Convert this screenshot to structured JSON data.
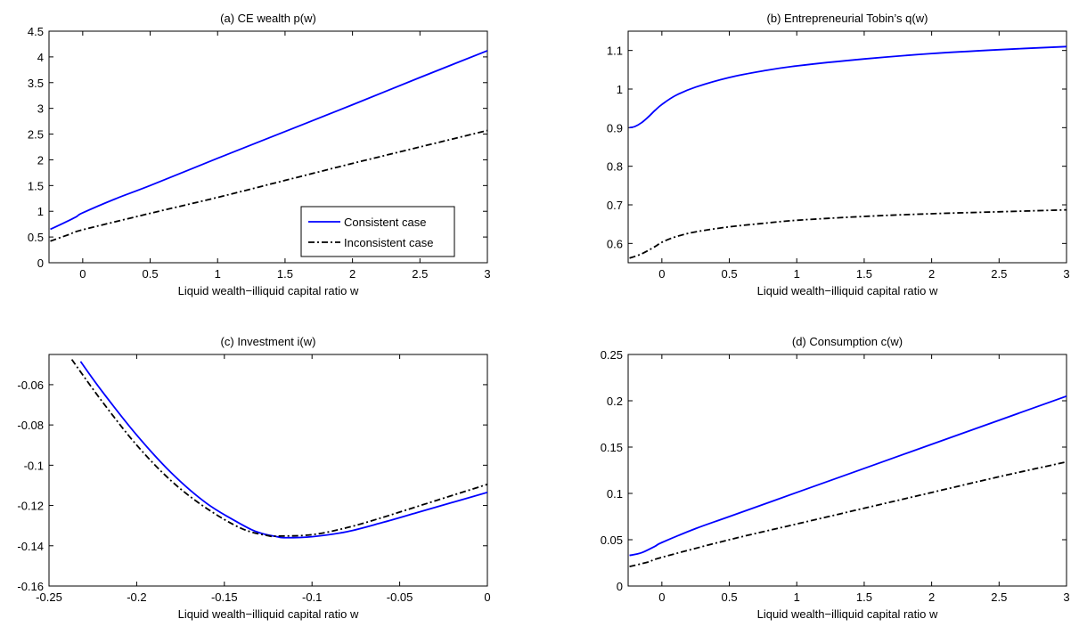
{
  "chart_data": [
    {
      "id": "a",
      "type": "line",
      "title": "(a) CE wealth p(w)",
      "xlabel": "Liquid wealth−illiquid capital ratio w",
      "ylabel": "",
      "xlim": [
        -0.25,
        3
      ],
      "ylim": [
        0,
        4.5
      ],
      "xticks": [
        0,
        0.5,
        1,
        1.5,
        2,
        2.5,
        3
      ],
      "xtick_labels": [
        "0",
        "0.5",
        "1",
        "1.5",
        "2",
        "2.5",
        "3"
      ],
      "yticks": [
        0,
        0.5,
        1,
        1.5,
        2,
        2.5,
        3,
        3.5,
        4,
        4.5
      ],
      "ytick_labels": [
        "0",
        "0.5",
        "1",
        "1.5",
        "2",
        "2.5",
        "3",
        "3.5",
        "4",
        "4.5"
      ],
      "legend": {
        "placement": "bottom-right"
      },
      "series": [
        {
          "name": "Consistent case",
          "color": "#0000ff",
          "dash": "solid",
          "x": [
            -0.24,
            -0.15,
            -0.05,
            0,
            0.25,
            0.5,
            1,
            1.5,
            2,
            2.5,
            3
          ],
          "y": [
            0.65,
            0.76,
            0.89,
            0.97,
            1.25,
            1.5,
            2.03,
            2.55,
            3.07,
            3.6,
            4.12
          ]
        },
        {
          "name": "Inconsistent case",
          "color": "#000000",
          "dash": "dashdot",
          "x": [
            -0.24,
            -0.1,
            0,
            0.5,
            1,
            1.5,
            2,
            2.5,
            3
          ],
          "y": [
            0.42,
            0.55,
            0.64,
            0.96,
            1.27,
            1.6,
            1.93,
            2.25,
            2.57
          ]
        }
      ]
    },
    {
      "id": "b",
      "type": "line",
      "title": "(b) Entrepreneurial Tobin’s q(w)",
      "xlabel": "Liquid wealth−illiquid capital ratio w",
      "ylabel": "",
      "xlim": [
        -0.25,
        3
      ],
      "ylim": [
        0.55,
        1.15
      ],
      "xticks": [
        0,
        0.5,
        1,
        1.5,
        2,
        2.5,
        3
      ],
      "xtick_labels": [
        "0",
        "0.5",
        "1",
        "1.5",
        "2",
        "2.5",
        "3"
      ],
      "yticks": [
        0.6,
        0.7,
        0.8,
        0.9,
        1.0,
        1.1
      ],
      "ytick_labels": [
        "0.6",
        "0.7",
        "0.8",
        "0.9",
        "1",
        "1.1"
      ],
      "series": [
        {
          "name": "Consistent case",
          "color": "#0000ff",
          "dash": "solid",
          "x": [
            -0.24,
            -0.2,
            -0.15,
            -0.1,
            -0.05,
            0,
            0.1,
            0.25,
            0.5,
            0.75,
            1,
            1.5,
            2,
            2.5,
            3
          ],
          "y": [
            0.9,
            0.903,
            0.913,
            0.928,
            0.945,
            0.96,
            0.983,
            1.005,
            1.03,
            1.047,
            1.06,
            1.078,
            1.092,
            1.102,
            1.11
          ]
        },
        {
          "name": "Inconsistent case",
          "color": "#000000",
          "dash": "dashdot",
          "x": [
            -0.24,
            -0.15,
            -0.05,
            0,
            0.1,
            0.25,
            0.5,
            0.75,
            1,
            1.5,
            2,
            2.5,
            3
          ],
          "y": [
            0.562,
            0.573,
            0.592,
            0.603,
            0.617,
            0.63,
            0.643,
            0.652,
            0.66,
            0.67,
            0.677,
            0.682,
            0.687
          ]
        }
      ]
    },
    {
      "id": "c",
      "type": "line",
      "title": "(c) Investment i(w)",
      "xlabel": "Liquid wealth−illiquid capital ratio w",
      "ylabel": "",
      "xlim": [
        -0.25,
        0
      ],
      "ylim": [
        -0.16,
        -0.045
      ],
      "xticks": [
        -0.25,
        -0.2,
        -0.15,
        -0.1,
        -0.05,
        0
      ],
      "xtick_labels": [
        "-0.25",
        "-0.2",
        "-0.15",
        "-0.1",
        "-0.05",
        "0"
      ],
      "yticks": [
        -0.16,
        -0.14,
        -0.12,
        -0.1,
        -0.08,
        -0.06
      ],
      "ytick_labels": [
        "-0.16",
        "-0.14",
        "-0.12",
        "-0.1",
        "-0.08",
        "-0.06"
      ],
      "series": [
        {
          "name": "Consistent case",
          "color": "#0000ff",
          "dash": "solid",
          "x": [
            -0.232,
            -0.22,
            -0.2,
            -0.18,
            -0.16,
            -0.14,
            -0.13,
            -0.12,
            -0.115,
            -0.1,
            -0.08,
            -0.06,
            -0.04,
            -0.02,
            0
          ],
          "y": [
            -0.0485,
            -0.063,
            -0.085,
            -0.104,
            -0.119,
            -0.1295,
            -0.1335,
            -0.1355,
            -0.136,
            -0.1355,
            -0.133,
            -0.1285,
            -0.1235,
            -0.1185,
            -0.1135
          ]
        },
        {
          "name": "Inconsistent case",
          "color": "#000000",
          "dash": "dashdot",
          "x": [
            -0.237,
            -0.22,
            -0.2,
            -0.18,
            -0.16,
            -0.14,
            -0.125,
            -0.12,
            -0.1,
            -0.08,
            -0.06,
            -0.04,
            -0.02,
            0
          ],
          "y": [
            -0.0475,
            -0.068,
            -0.09,
            -0.108,
            -0.1215,
            -0.1315,
            -0.135,
            -0.1352,
            -0.1345,
            -0.131,
            -0.126,
            -0.1205,
            -0.115,
            -0.1095
          ]
        }
      ]
    },
    {
      "id": "d",
      "type": "line",
      "title": "(d) Consumption c(w)",
      "xlabel": "Liquid wealth−illiquid capital ratio w",
      "ylabel": "",
      "xlim": [
        -0.25,
        3
      ],
      "ylim": [
        0,
        0.25
      ],
      "xticks": [
        0,
        0.5,
        1,
        1.5,
        2,
        2.5,
        3
      ],
      "xtick_labels": [
        "0",
        "0.5",
        "1",
        "1.5",
        "2",
        "2.5",
        "3"
      ],
      "yticks": [
        0,
        0.05,
        0.1,
        0.15,
        0.2,
        0.25
      ],
      "ytick_labels": [
        "0",
        "0.05",
        "0.1",
        "0.15",
        "0.2",
        "0.25"
      ],
      "series": [
        {
          "name": "Consistent case",
          "color": "#0000ff",
          "dash": "solid",
          "x": [
            -0.24,
            -0.15,
            -0.05,
            0,
            0.25,
            0.5,
            1,
            1.5,
            2,
            2.5,
            3
          ],
          "y": [
            0.033,
            0.036,
            0.043,
            0.047,
            0.062,
            0.075,
            0.101,
            0.127,
            0.153,
            0.179,
            0.205
          ]
        },
        {
          "name": "Inconsistent case",
          "color": "#000000",
          "dash": "dashdot",
          "x": [
            -0.24,
            -0.1,
            0,
            0.5,
            1,
            1.5,
            2,
            2.5,
            3
          ],
          "y": [
            0.021,
            0.026,
            0.031,
            0.05,
            0.067,
            0.084,
            0.101,
            0.118,
            0.134
          ]
        }
      ]
    }
  ]
}
